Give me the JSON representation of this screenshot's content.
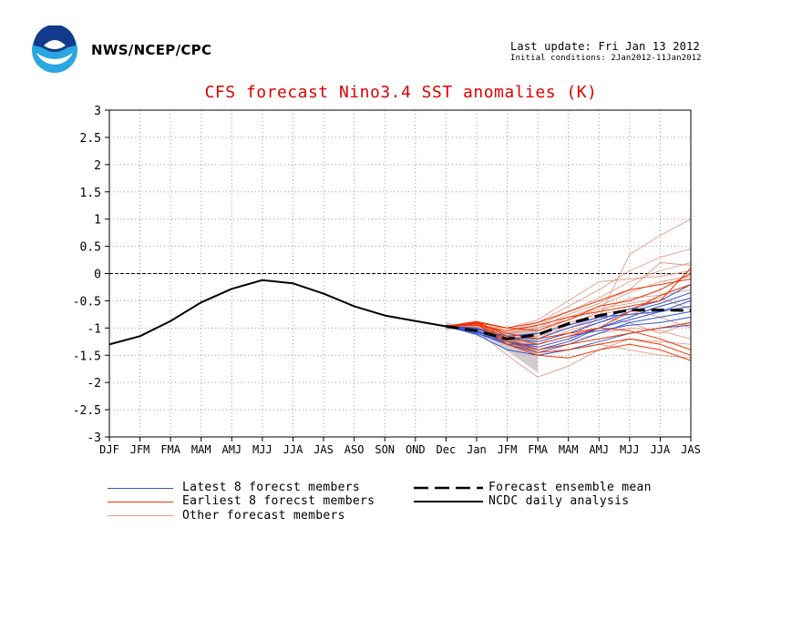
{
  "header": {
    "agency": "NWS/NCEP/CPC",
    "last_update": "Last update: Fri Jan 13 2012",
    "initial_conditions": "Initial conditions: 2Jan2012-11Jan2012",
    "logo_text": "NOAA"
  },
  "chart_data": {
    "type": "line",
    "title": "CFS forecast Nino3.4 SST anomalies (K)",
    "xlabel": "",
    "ylabel": "",
    "categories": [
      "DJF",
      "JFM",
      "FMA",
      "MAM",
      "AMJ",
      "MJJ",
      "JJA",
      "JAS",
      "ASO",
      "SON",
      "OND",
      "Dec",
      "Jan",
      "JFM",
      "FMA",
      "MAM",
      "AMJ",
      "MJJ",
      "JJA",
      "JAS"
    ],
    "ylim": [
      -3,
      3
    ],
    "yticks": [
      "3",
      "2.5",
      "2",
      "1.5",
      "1",
      "0.5",
      "0",
      "-0.5",
      "-1",
      "-1.5",
      "-2",
      "-2.5",
      "-3"
    ],
    "grid": true,
    "zero_line": true,
    "legend_position": "bottom",
    "colors": {
      "latest": "#3355cc",
      "earliest": "#ee3300",
      "other": "#e49a8a",
      "mean": "#000000",
      "analysis": "#000000",
      "title": "#e00000",
      "spread": "#a89a9a"
    },
    "series": [
      {
        "name": "NCDC daily analysis",
        "style": "solid",
        "values": [
          -1.3,
          -1.15,
          -0.87,
          -0.53,
          -0.28,
          -0.12,
          -0.18,
          -0.37,
          -0.6,
          -0.77,
          -0.87,
          -0.97,
          null,
          null,
          null,
          null,
          null,
          null,
          null,
          null
        ]
      },
      {
        "name": "Forecast ensemble mean",
        "style": "dashed",
        "values": [
          null,
          null,
          null,
          null,
          null,
          null,
          null,
          null,
          null,
          null,
          null,
          -0.97,
          -1.05,
          -1.2,
          -1.12,
          -0.92,
          -0.77,
          -0.67,
          -0.67,
          -0.68
        ]
      }
    ],
    "members": {
      "latest": [
        [
          -0.97,
          -1.1,
          -1.3,
          -1.45,
          -1.3,
          -1.1,
          -0.9,
          -0.8,
          -0.7
        ],
        [
          -0.97,
          -1.05,
          -1.25,
          -1.35,
          -1.2,
          -1.0,
          -0.85,
          -0.7,
          -0.5
        ],
        [
          -0.97,
          -1.08,
          -1.2,
          -1.25,
          -1.1,
          -0.9,
          -0.7,
          -0.55,
          -0.35
        ],
        [
          -0.97,
          -1.12,
          -1.4,
          -1.5,
          -1.4,
          -1.25,
          -1.1,
          -1.0,
          -0.95
        ],
        [
          -0.97,
          -1.0,
          -1.15,
          -1.1,
          -0.95,
          -0.8,
          -0.75,
          -0.7,
          -0.6
        ],
        [
          -0.97,
          -1.05,
          -1.3,
          -1.3,
          -1.15,
          -1.05,
          -0.95,
          -0.9,
          -0.8
        ],
        [
          -0.97,
          -1.1,
          -1.25,
          -1.4,
          -1.25,
          -1.0,
          -0.8,
          -0.6,
          -0.45
        ],
        [
          -0.97,
          -1.02,
          -1.18,
          -1.2,
          -1.0,
          -0.85,
          -0.65,
          -0.5,
          -0.2
        ]
      ],
      "earliest": [
        [
          -0.97,
          -0.88,
          -1.0,
          -0.9,
          -0.7,
          -0.5,
          -0.3,
          -0.2,
          -0.1
        ],
        [
          -0.97,
          -0.9,
          -1.1,
          -1.2,
          -1.1,
          -1.0,
          -1.05,
          -1.2,
          -1.4
        ],
        [
          -0.97,
          -0.92,
          -1.3,
          -1.5,
          -1.55,
          -1.4,
          -1.3,
          -1.4,
          -1.6
        ],
        [
          -0.97,
          -0.95,
          -1.05,
          -0.95,
          -0.8,
          -0.7,
          -0.6,
          -0.5,
          0.1
        ],
        [
          -0.97,
          -0.9,
          -1.2,
          -1.4,
          -1.3,
          -1.2,
          -1.1,
          -1.0,
          -0.9
        ],
        [
          -0.97,
          -0.88,
          -1.15,
          -1.3,
          -1.15,
          -1.0,
          -0.7,
          -0.4,
          -0.2
        ],
        [
          -0.97,
          -0.93,
          -1.25,
          -1.45,
          -1.4,
          -1.3,
          -1.2,
          -1.3,
          -1.5
        ],
        [
          -0.97,
          -0.9,
          -1.0,
          -1.05,
          -0.85,
          -0.6,
          -0.5,
          -0.3,
          0.0
        ]
      ],
      "other": [
        [
          -0.97,
          -0.95,
          -1.05,
          -0.9,
          -0.6,
          -0.3,
          0.05,
          0.3,
          0.45
        ],
        [
          -0.97,
          -1.0,
          -1.2,
          -1.35,
          -1.2,
          -0.8,
          0.35,
          0.7,
          1.0
        ],
        [
          -0.97,
          -1.05,
          -1.5,
          -1.9,
          -1.7,
          -1.4,
          -1.2,
          -1.25,
          -1.3
        ],
        [
          -0.97,
          -0.98,
          -1.1,
          -1.0,
          -0.75,
          -0.55,
          -0.3,
          0.2,
          0.15
        ],
        [
          -0.97,
          -1.02,
          -1.3,
          -1.5,
          -1.4,
          -1.3,
          -1.4,
          -1.5,
          -1.55
        ],
        [
          -0.97,
          -0.96,
          -1.0,
          -0.85,
          -0.5,
          -0.15,
          -0.1,
          -0.05,
          0.05
        ],
        [
          -0.97,
          -1.0,
          -1.15,
          -1.2,
          -0.95,
          -0.7,
          -0.45,
          -0.4,
          -0.3
        ],
        [
          -0.97,
          -1.03,
          -1.25,
          -1.1,
          -0.9,
          -0.75,
          -0.65,
          -0.8,
          -1.0
        ],
        [
          -0.97,
          -0.99,
          -1.1,
          -1.05,
          -0.8,
          -0.6,
          -0.35,
          -0.15,
          -0.05
        ],
        [
          -0.97,
          -1.01,
          -1.2,
          -1.3,
          -1.05,
          -0.9,
          -0.75,
          -0.6,
          -0.45
        ],
        [
          -0.97,
          -0.97,
          -1.05,
          -0.95,
          -0.7,
          -0.45,
          -0.15,
          0.05,
          0.2
        ],
        [
          -0.97,
          -1.04,
          -1.3,
          -1.4,
          -1.25,
          -1.1,
          -1.0,
          -1.05,
          -1.2
        ],
        [
          -0.97,
          -0.98,
          -1.08,
          -1.0,
          -0.85,
          -0.65,
          -0.55,
          -0.45,
          -0.65
        ],
        [
          -0.97,
          -1.0,
          -1.18,
          -1.15,
          -1.0,
          -0.8,
          -0.9,
          -1.1,
          -0.9
        ]
      ]
    }
  },
  "legend": {
    "latest": "Latest 8 forecst members",
    "earliest": "Earliest 8 forecst members",
    "other": "Other forecast members",
    "mean": "Forecast ensemble mean",
    "analysis": "NCDC daily analysis"
  }
}
